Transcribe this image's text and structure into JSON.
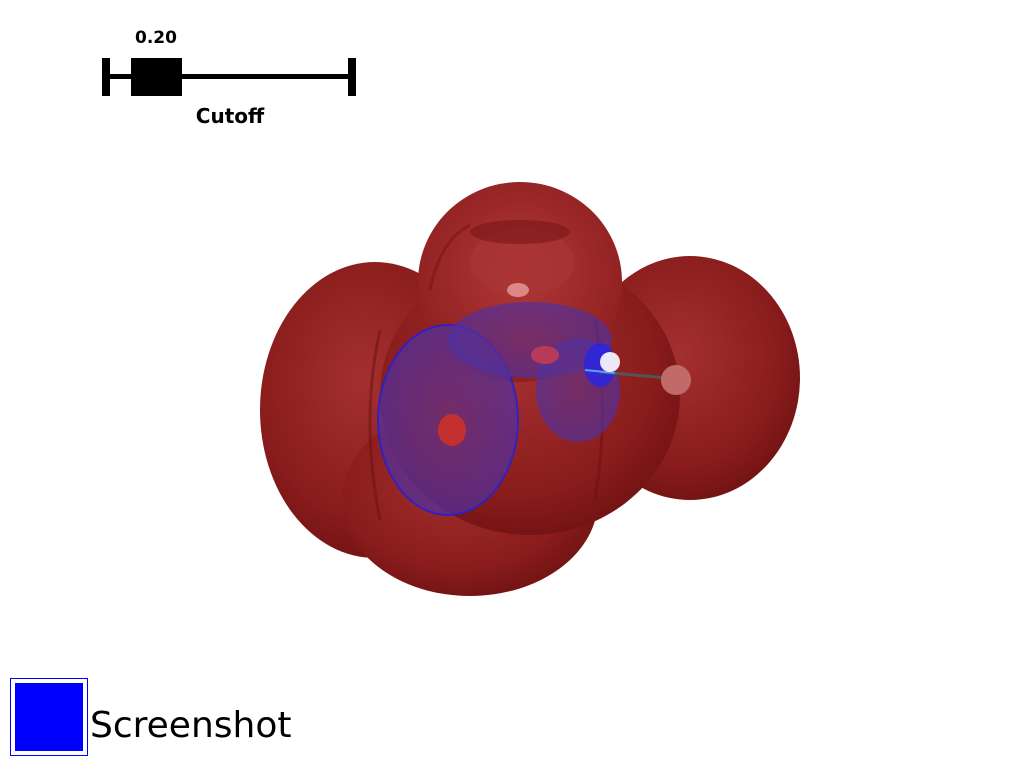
{
  "slider": {
    "label": "Cutoff",
    "value_text": "0.20",
    "value": 0.2,
    "range": [
      0,
      1
    ]
  },
  "colors": {
    "positive_isosurface": "#8b1a1a",
    "negative_isosurface": "#4a2a9a",
    "button_fill": "#0000ff"
  },
  "screenshot_button": {
    "label": "Screenshot"
  }
}
